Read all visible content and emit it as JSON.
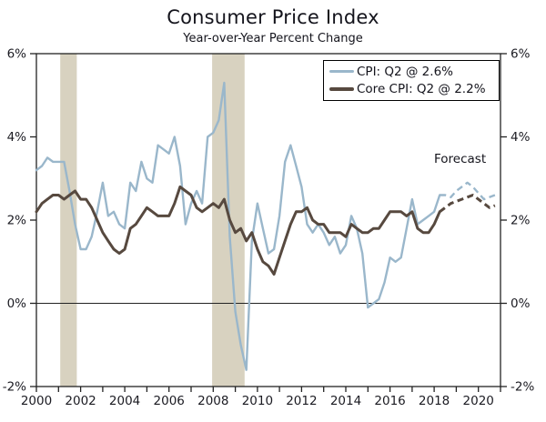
{
  "header": {
    "title": "Consumer Price Index",
    "subtitle": "Year-over-Year Percent Change"
  },
  "chart_data": {
    "type": "line",
    "title": "Consumer Price Index",
    "subtitle": "Year-over-Year Percent Change",
    "forecast_label": "Forecast",
    "legend_position": "top-right-inside",
    "grid": "zero-line-only",
    "xlim": [
      2000,
      2021
    ],
    "ylim": [
      -2,
      6
    ],
    "yticks": [
      {
        "value": 6,
        "label": "6%"
      },
      {
        "value": 4,
        "label": "4%"
      },
      {
        "value": 2,
        "label": "2%"
      },
      {
        "value": 0,
        "label": "0%"
      },
      {
        "value": -2,
        "label": "-2%"
      }
    ],
    "xticks": [
      {
        "value": 2000,
        "label": "2000"
      },
      {
        "value": 2002,
        "label": "2002"
      },
      {
        "value": 2004,
        "label": "2004"
      },
      {
        "value": 2006,
        "label": "2006"
      },
      {
        "value": 2008,
        "label": "2008"
      },
      {
        "value": 2010,
        "label": "2010"
      },
      {
        "value": 2012,
        "label": "2012"
      },
      {
        "value": 2014,
        "label": "2014"
      },
      {
        "value": 2016,
        "label": "2016"
      },
      {
        "value": 2018,
        "label": "2018"
      },
      {
        "value": 2020,
        "label": "2020"
      }
    ],
    "minor_xtick_step": 1,
    "colors": {
      "cpi_line": "#9ab7cb",
      "core_cpi_line": "#57493f",
      "recession_band": "#d8d2c0",
      "axis": "#222222",
      "text": "#1b1b22"
    },
    "recession_bands": [
      {
        "start": 2001.08,
        "end": 2001.83
      },
      {
        "start": 2007.95,
        "end": 2009.42
      }
    ],
    "series": [
      {
        "id": "cpi",
        "name": "CPI: Q2 @ 2.6%",
        "color": "#9ab7cb",
        "width": 2.4,
        "x_start": 2000.0,
        "x_step": 0.25,
        "values": [
          3.2,
          3.3,
          3.5,
          3.4,
          3.4,
          3.4,
          2.7,
          1.9,
          1.3,
          1.3,
          1.6,
          2.2,
          2.9,
          2.1,
          2.2,
          1.9,
          1.8,
          2.9,
          2.7,
          3.4,
          3.0,
          2.9,
          3.8,
          3.7,
          3.6,
          4.0,
          3.3,
          1.9,
          2.4,
          2.7,
          2.4,
          4.0,
          4.1,
          4.4,
          5.3,
          1.6,
          -0.2,
          -1.0,
          -1.6,
          1.5,
          2.4,
          1.8,
          1.2,
          1.3,
          2.1,
          3.4,
          3.8,
          3.3,
          2.8,
          1.9,
          1.7,
          1.9,
          1.7,
          1.4,
          1.6,
          1.2,
          1.4,
          2.1,
          1.8,
          1.2,
          -0.1,
          0.0,
          0.1,
          0.5,
          1.1,
          1.0,
          1.1,
          1.8,
          2.5,
          1.9,
          2.0,
          2.1,
          2.2,
          2.6
        ],
        "forecast_x_start": 2018.5,
        "forecast_values": [
          2.6,
          2.55,
          2.7,
          2.8,
          2.9,
          2.8,
          2.65,
          2.5,
          2.55,
          2.6
        ]
      },
      {
        "id": "core-cpi",
        "name": "Core CPI: Q2 @ 2.2%",
        "color": "#57493f",
        "width": 3,
        "x_start": 2000.0,
        "x_step": 0.25,
        "values": [
          2.2,
          2.4,
          2.5,
          2.6,
          2.6,
          2.5,
          2.6,
          2.7,
          2.5,
          2.5,
          2.3,
          2.0,
          1.7,
          1.5,
          1.3,
          1.2,
          1.3,
          1.8,
          1.9,
          2.1,
          2.3,
          2.2,
          2.1,
          2.1,
          2.1,
          2.4,
          2.8,
          2.7,
          2.6,
          2.3,
          2.2,
          2.3,
          2.4,
          2.3,
          2.5,
          2.0,
          1.7,
          1.8,
          1.5,
          1.7,
          1.3,
          1.0,
          0.9,
          0.7,
          1.1,
          1.5,
          1.9,
          2.2,
          2.2,
          2.3,
          2.0,
          1.9,
          1.9,
          1.7,
          1.7,
          1.7,
          1.6,
          1.9,
          1.8,
          1.7,
          1.7,
          1.8,
          1.8,
          2.0,
          2.2,
          2.2,
          2.2,
          2.1,
          2.2,
          1.8,
          1.7,
          1.7,
          1.9,
          2.2
        ],
        "forecast_x_start": 2018.5,
        "forecast_values": [
          2.3,
          2.4,
          2.45,
          2.5,
          2.55,
          2.6,
          2.5,
          2.4,
          2.3,
          2.35
        ]
      }
    ]
  }
}
